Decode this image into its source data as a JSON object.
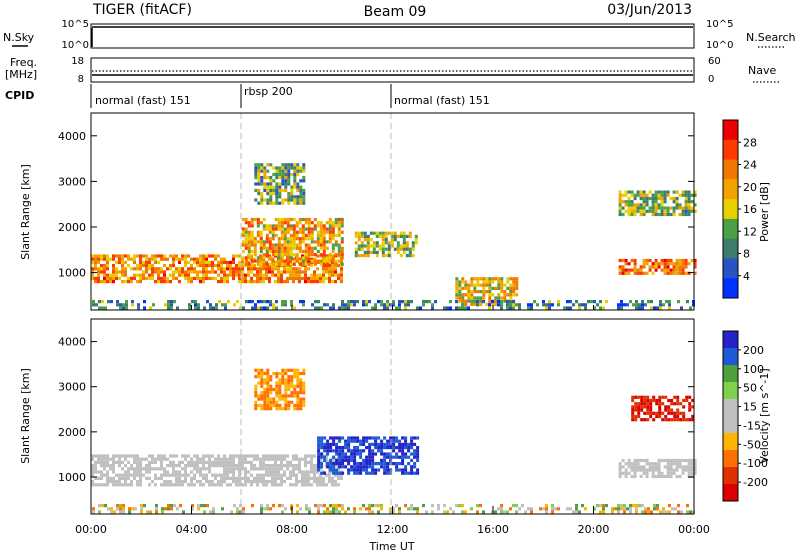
{
  "header": {
    "radar": "TIGER (fitACF)",
    "beam": "Beam 09",
    "date": "03/Jun/2013"
  },
  "status_panels": {
    "nsky_label": "N.Sky",
    "nsky_ticks": [
      "10^5",
      "10^0"
    ],
    "nsearch_label": "N.Search",
    "nsearch_ticks": [
      "10^5",
      "10^0"
    ],
    "freq_label": "Freq.",
    "freq_unit": "[MHz]",
    "freq_ticks": [
      "18",
      "8"
    ],
    "nave_label": "Nave",
    "nave_ticks": [
      "60",
      "0"
    ],
    "cpid_label": "CPID",
    "cpid_segments": [
      {
        "label": "normal (fast) 151",
        "start_h": 0,
        "end_h": 6
      },
      {
        "label": "rbsp 200",
        "start_h": 6,
        "end_h": 12
      },
      {
        "label": "normal (fast) 151",
        "start_h": 12,
        "end_h": 24
      }
    ]
  },
  "xaxis": {
    "title": "Time UT",
    "ticks": [
      "00:00",
      "04:00",
      "08:00",
      "12:00",
      "16:00",
      "20:00",
      "00:00"
    ]
  },
  "colors": {
    "power_scale": [
      "#0033ff",
      "#2a52c2",
      "#3c7d6e",
      "#4aa044",
      "#e8d000",
      "#f3a300",
      "#f07800",
      "#ff3a00",
      "#ee0000"
    ],
    "velocity_scale": [
      "#2323c8",
      "#1e5ad8",
      "#4fa03c",
      "#7fd04a",
      "#c0c0c0",
      "#c0c0c0",
      "#ffb400",
      "#ff7000",
      "#e03000",
      "#dd0000"
    ]
  },
  "chart_data": [
    {
      "type": "heatmap",
      "panel": "power",
      "title": "",
      "xlabel": "",
      "ylabel": "Slant Range [km]",
      "xlim_h": [
        0,
        24
      ],
      "ylim": [
        180,
        4500
      ],
      "yticks": [
        "1000",
        "2000",
        "3000",
        "4000"
      ],
      "colorbar": {
        "label": "Power [dB]",
        "ticks": [
          "28",
          "24",
          "20",
          "16",
          "12",
          "8",
          "4"
        ],
        "range": [
          0,
          32
        ]
      },
      "features": [
        {
          "name": "main E/F band",
          "time_h": [
            0,
            10
          ],
          "range_km": [
            800,
            1400
          ],
          "value_db": 22
        },
        {
          "name": "rising arc",
          "time_h": [
            6,
            10
          ],
          "range_km": [
            1200,
            2200
          ],
          "value_db": 20
        },
        {
          "name": "upper scatter",
          "time_h": [
            6.5,
            8.5
          ],
          "range_km": [
            2500,
            3400
          ],
          "value_db": 12
        },
        {
          "name": "midday patch",
          "time_h": [
            10.5,
            13
          ],
          "range_km": [
            1400,
            1900
          ],
          "value_db": 14
        },
        {
          "name": "afternoon near-range",
          "time_h": [
            14.5,
            17
          ],
          "range_km": [
            300,
            900
          ],
          "value_db": 18
        },
        {
          "name": "evening band",
          "time_h": [
            21,
            24
          ],
          "range_km": [
            1000,
            1300
          ],
          "value_db": 24
        },
        {
          "name": "evening upper",
          "time_h": [
            21,
            24
          ],
          "range_km": [
            2300,
            2800
          ],
          "value_db": 14
        }
      ]
    },
    {
      "type": "heatmap",
      "panel": "velocity",
      "title": "",
      "xlabel": "Time UT",
      "ylabel": "Slant Range [km]",
      "xlim_h": [
        0,
        24
      ],
      "ylim": [
        180,
        4500
      ],
      "yticks": [
        "1000",
        "2000",
        "3000",
        "4000"
      ],
      "colorbar": {
        "label": "Velocity [m s^-1]",
        "ticks": [
          "200",
          "100",
          "50",
          "15",
          "-15",
          "-50",
          "-100",
          "-200"
        ],
        "range": [
          -250,
          250
        ]
      },
      "features": [
        {
          "name": "ground scatter band",
          "time_h": [
            0,
            10
          ],
          "range_km": [
            800,
            1500
          ],
          "value_ms": 0
        },
        {
          "name": "midday positive",
          "time_h": [
            9,
            13
          ],
          "range_km": [
            1100,
            1900
          ],
          "value_ms": 200
        },
        {
          "name": "upper mixed",
          "time_h": [
            6.5,
            8.5
          ],
          "range_km": [
            2500,
            3400
          ],
          "value_ms": -100
        },
        {
          "name": "evening negative",
          "time_h": [
            21.5,
            24
          ],
          "range_km": [
            2300,
            2800
          ],
          "value_ms": -200
        },
        {
          "name": "evening ground scatter",
          "time_h": [
            21,
            24
          ],
          "range_km": [
            1000,
            1400
          ],
          "value_ms": 0
        }
      ]
    }
  ]
}
